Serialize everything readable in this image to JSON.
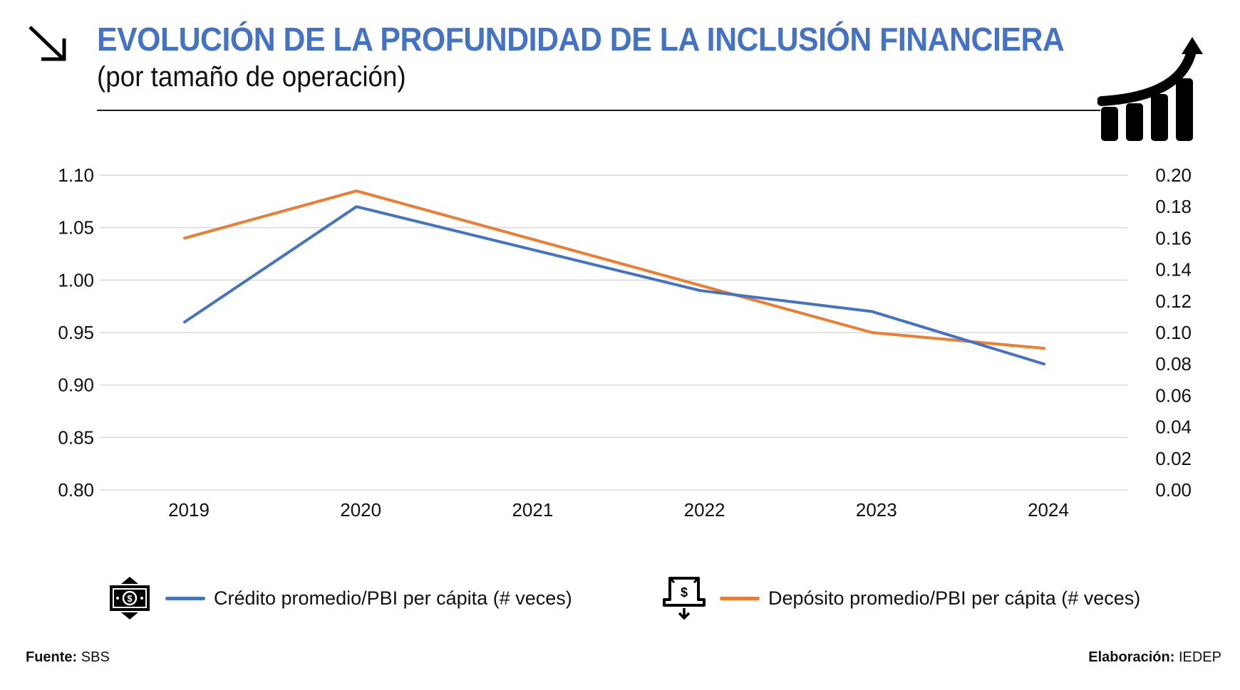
{
  "header": {
    "title": "EVOLUCIÓN DE LA PROFUNDIDAD DE LA INCLUSIÓN FINANCIERA",
    "subtitle": "(por tamaño de operación)",
    "left_icon": "arrow-down-right-icon",
    "right_icon": "growth-chart-icon"
  },
  "colors": {
    "title": "#4472c4",
    "credit": "#4472c4",
    "deposit": "#ed7d31",
    "grid": "#d9d9d9"
  },
  "chart_data": {
    "type": "line",
    "title": "EVOLUCIÓN DE LA PROFUNDIDAD DE LA INCLUSIÓN FINANCIERA",
    "subtitle": "(por tamaño de operación)",
    "categories": [
      "2019",
      "2020",
      "2021",
      "2022",
      "2023",
      "2024"
    ],
    "series": [
      {
        "name": "Crédito promedio/PBI per cápita (# veces)",
        "axis": "left",
        "color": "#4472c4",
        "icon": "cash-bill-icon",
        "values": [
          0.96,
          1.07,
          1.03,
          0.99,
          0.97,
          0.92
        ]
      },
      {
        "name": "Depósito promedio/PBI per cápita (# veces)",
        "axis": "right",
        "color": "#ed7d31",
        "icon": "deposit-box-icon",
        "values": [
          0.16,
          0.19,
          0.16,
          0.13,
          0.1,
          0.09
        ]
      }
    ],
    "y_left": {
      "range": [
        0.8,
        1.1
      ],
      "ticks": [
        "0.80",
        "0.85",
        "0.90",
        "0.95",
        "1.00",
        "1.05",
        "1.10"
      ]
    },
    "y_right": {
      "range": [
        0.0,
        0.2
      ],
      "ticks": [
        "0.00",
        "0.02",
        "0.04",
        "0.06",
        "0.08",
        "0.10",
        "0.12",
        "0.14",
        "0.16",
        "0.18",
        "0.20"
      ]
    },
    "xlabel": "",
    "ylabel": "",
    "grid": true,
    "legend_position": "bottom"
  },
  "footer": {
    "source_label": "Fuente:",
    "source_value": "SBS",
    "credits_label": "Elaboración:",
    "credits_value": "IEDEP"
  }
}
